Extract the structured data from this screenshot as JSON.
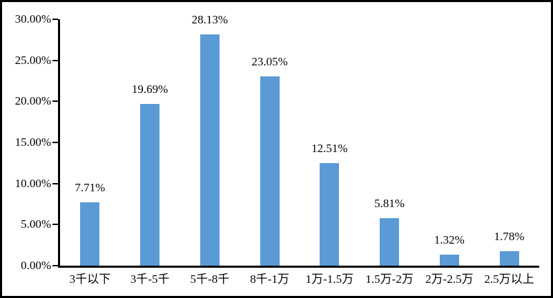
{
  "chart_data": {
    "type": "bar",
    "title": "",
    "xlabel": "",
    "ylabel": "",
    "categories": [
      "3千以下",
      "3千-5千",
      "5千-8千",
      "8千-1万",
      "1万-1.5万",
      "1.5万-2万",
      "2万-2.5万",
      "2.5万以上"
    ],
    "values": [
      7.71,
      19.69,
      28.13,
      23.05,
      12.51,
      5.81,
      1.32,
      1.78
    ],
    "value_labels": [
      "7.71%",
      "19.69%",
      "28.13%",
      "23.05%",
      "12.51%",
      "5.81%",
      "1.32%",
      "1.78%"
    ],
    "ylim": [
      0,
      30
    ],
    "y_ticks": [
      0,
      5,
      10,
      15,
      20,
      25,
      30
    ],
    "y_tick_labels": [
      "0.00%",
      "5.00%",
      "10.00%",
      "15.00%",
      "20.00%",
      "25.00%",
      "30.00%"
    ],
    "grid": false,
    "legend": null,
    "bar_color": "#5b9bd5",
    "axis_color": "#000000",
    "background_color": "#ffffff",
    "border_color": "#000000"
  }
}
